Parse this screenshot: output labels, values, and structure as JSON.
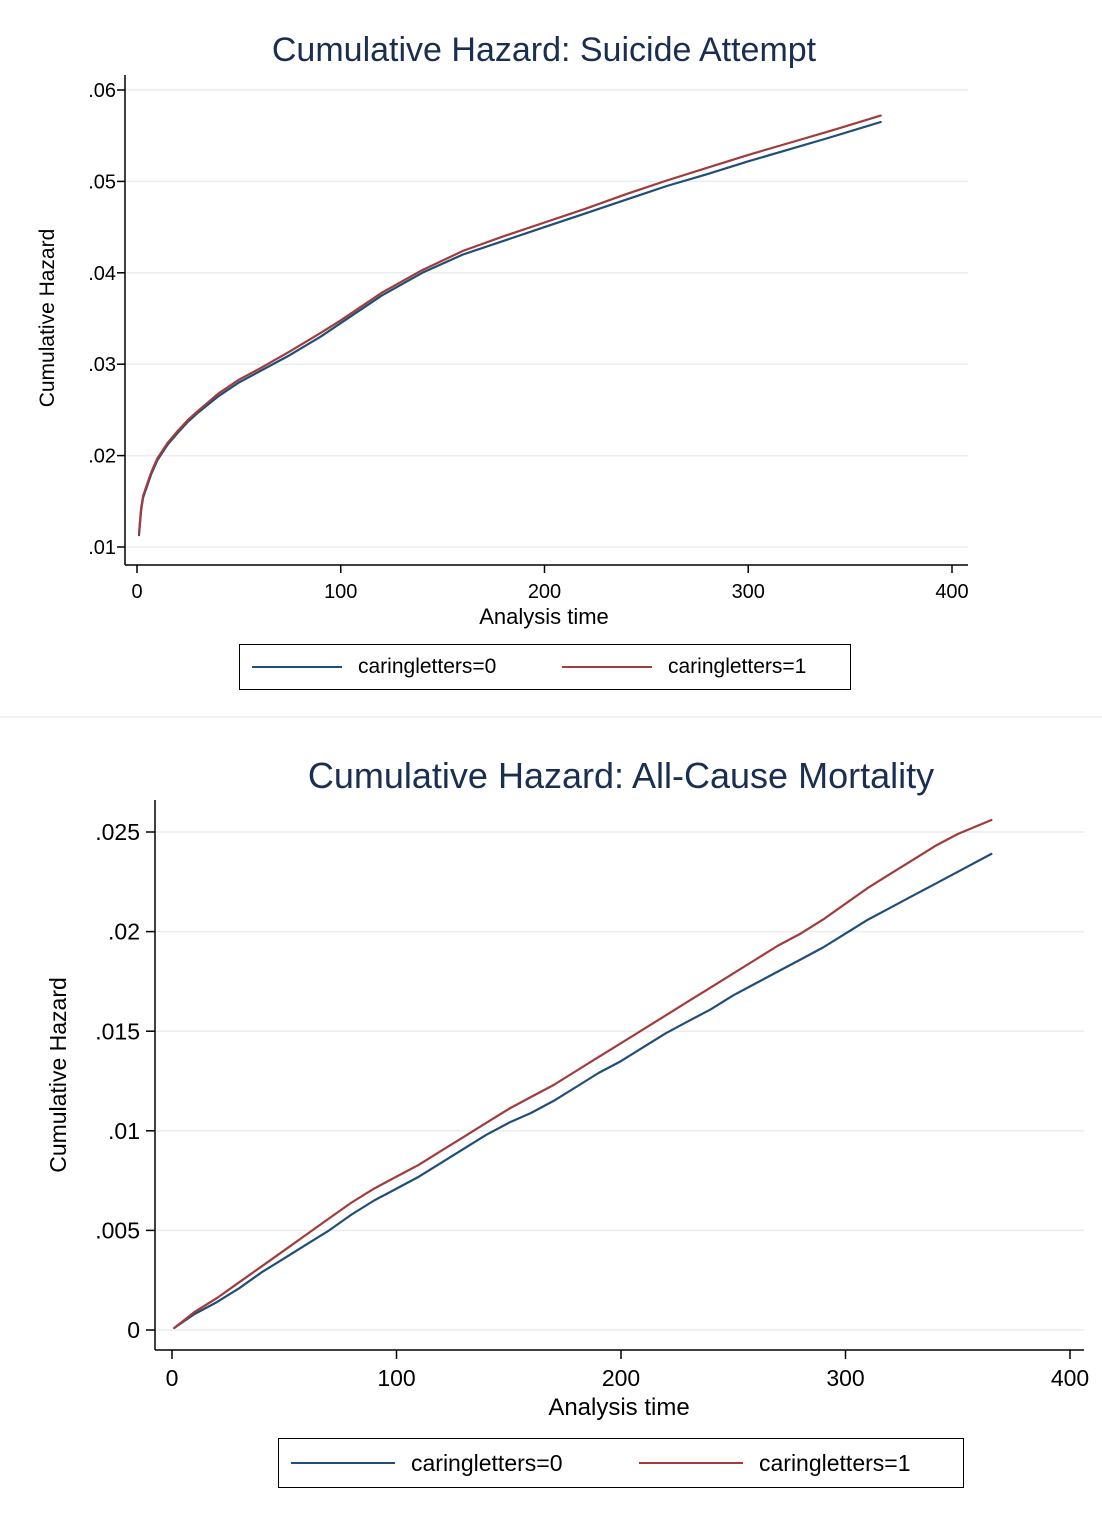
{
  "colors": {
    "caringletters_0": "#1f4e79",
    "caringletters_1": "#a23b3b",
    "grid": "#e8eef0",
    "axis": "#000000"
  },
  "chart_data": [
    {
      "type": "line",
      "title": "Cumulative Hazard: Suicide Attempt",
      "xlabel": "Analysis time",
      "ylabel": "Cumulative Hazard",
      "xlim": [
        0,
        400
      ],
      "ylim": [
        0.01,
        0.06
      ],
      "x_ticks": [
        0,
        100,
        200,
        300,
        400
      ],
      "x_tick_labels": [
        "0",
        "100",
        "200",
        "300",
        "400"
      ],
      "y_ticks": [
        0.01,
        0.02,
        0.03,
        0.04,
        0.05,
        0.06
      ],
      "y_tick_labels": [
        ".01",
        ".02",
        ".03",
        ".04",
        ".05",
        ".06"
      ],
      "grid": true,
      "legend_position": "bottom",
      "series": [
        {
          "name": "caringletters=0",
          "color": "#1f4e79",
          "x": [
            1,
            2,
            3,
            5,
            7,
            10,
            15,
            20,
            25,
            30,
            40,
            50,
            60,
            75,
            90,
            100,
            120,
            140,
            160,
            180,
            200,
            220,
            240,
            260,
            280,
            300,
            320,
            340,
            365
          ],
          "y": [
            0.0113,
            0.014,
            0.0154,
            0.0167,
            0.018,
            0.0195,
            0.0212,
            0.0225,
            0.0237,
            0.0247,
            0.0265,
            0.028,
            0.0292,
            0.031,
            0.033,
            0.0345,
            0.0375,
            0.04,
            0.042,
            0.0435,
            0.045,
            0.0465,
            0.048,
            0.0495,
            0.0508,
            0.0522,
            0.0535,
            0.0548,
            0.0565
          ]
        },
        {
          "name": "caringletters=1",
          "color": "#a23b3b",
          "x": [
            1,
            2,
            3,
            5,
            7,
            10,
            15,
            20,
            25,
            30,
            40,
            50,
            60,
            75,
            90,
            100,
            120,
            140,
            160,
            180,
            200,
            220,
            240,
            260,
            280,
            300,
            320,
            340,
            365
          ],
          "y": [
            0.0115,
            0.0142,
            0.0156,
            0.0169,
            0.0182,
            0.0197,
            0.0214,
            0.0227,
            0.0239,
            0.0249,
            0.0268,
            0.0283,
            0.0295,
            0.0314,
            0.0334,
            0.0348,
            0.0378,
            0.0403,
            0.0424,
            0.044,
            0.0455,
            0.047,
            0.0486,
            0.0501,
            0.0515,
            0.0529,
            0.0542,
            0.0555,
            0.0572
          ]
        }
      ]
    },
    {
      "type": "line",
      "title": "Cumulative Hazard: All-Cause Mortality",
      "xlabel": "Analysis time",
      "ylabel": "Cumulative Hazard",
      "xlim": [
        0,
        400
      ],
      "ylim": [
        0,
        0.025
      ],
      "x_ticks": [
        0,
        100,
        200,
        300,
        400
      ],
      "x_tick_labels": [
        "0",
        "100",
        "200",
        "300",
        "400"
      ],
      "y_ticks": [
        0,
        0.005,
        0.01,
        0.015,
        0.02,
        0.025
      ],
      "y_tick_labels": [
        "0",
        ".005",
        ".01",
        ".015",
        ".02",
        ".025"
      ],
      "grid": true,
      "legend_position": "bottom",
      "series": [
        {
          "name": "caringletters=0",
          "color": "#1f4e79",
          "x": [
            1,
            10,
            20,
            30,
            40,
            50,
            60,
            70,
            80,
            90,
            100,
            110,
            120,
            130,
            140,
            150,
            160,
            170,
            180,
            190,
            200,
            210,
            220,
            230,
            240,
            250,
            260,
            270,
            280,
            290,
            300,
            310,
            320,
            330,
            340,
            350,
            365
          ],
          "y": [
            0.0001,
            0.0008,
            0.0014,
            0.0021,
            0.0029,
            0.0036,
            0.0043,
            0.005,
            0.0058,
            0.0065,
            0.0071,
            0.0077,
            0.0084,
            0.0091,
            0.0098,
            0.0104,
            0.0109,
            0.0115,
            0.0122,
            0.0129,
            0.0135,
            0.0142,
            0.0149,
            0.0155,
            0.0161,
            0.0168,
            0.0174,
            0.018,
            0.0186,
            0.0192,
            0.0199,
            0.0206,
            0.0212,
            0.0218,
            0.0224,
            0.023,
            0.0239
          ]
        },
        {
          "name": "caringletters=1",
          "color": "#a23b3b",
          "x": [
            1,
            10,
            20,
            30,
            40,
            50,
            60,
            70,
            80,
            90,
            100,
            110,
            120,
            130,
            140,
            150,
            160,
            170,
            180,
            190,
            200,
            210,
            220,
            230,
            240,
            250,
            260,
            270,
            280,
            290,
            300,
            310,
            320,
            330,
            340,
            350,
            365
          ],
          "y": [
            0.0001,
            0.0009,
            0.0016,
            0.0024,
            0.0032,
            0.004,
            0.0048,
            0.0056,
            0.0064,
            0.0071,
            0.0077,
            0.0083,
            0.009,
            0.0097,
            0.0104,
            0.0111,
            0.0117,
            0.0123,
            0.013,
            0.0137,
            0.0144,
            0.0151,
            0.0158,
            0.0165,
            0.0172,
            0.0179,
            0.0186,
            0.0193,
            0.0199,
            0.0206,
            0.0214,
            0.0222,
            0.0229,
            0.0236,
            0.0243,
            0.0249,
            0.0256
          ]
        }
      ]
    }
  ]
}
